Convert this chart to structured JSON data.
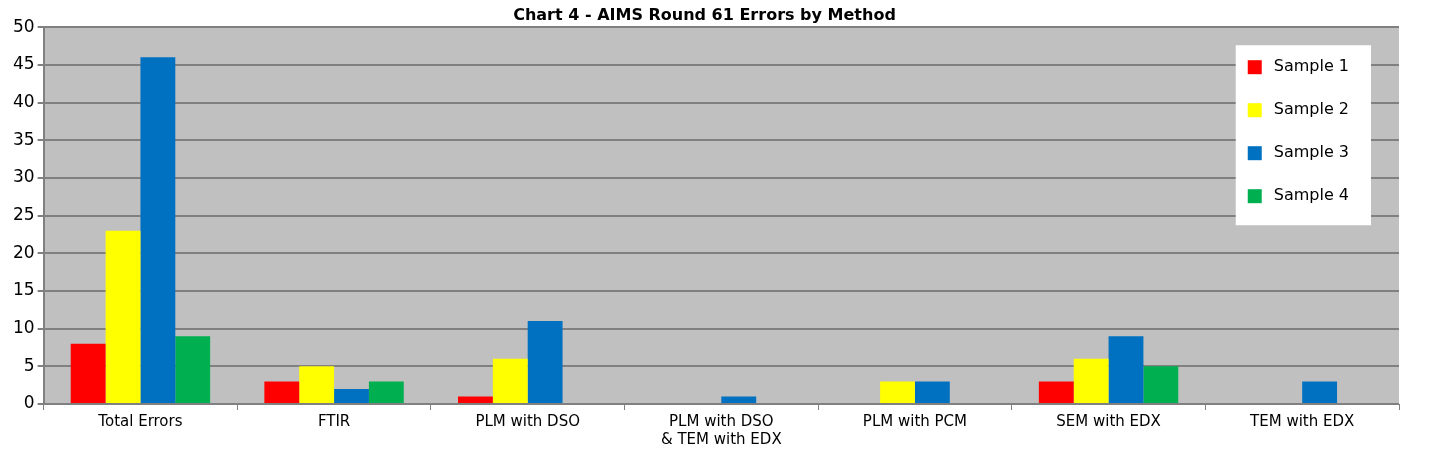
{
  "chart_data": {
    "type": "bar",
    "title": "Chart 4 - AIMS Round 61 Errors by Method",
    "categories": [
      "Total Errors",
      "FTIR",
      "PLM with DSO",
      "PLM with DSO & TEM with EDX",
      "PLM with PCM",
      "SEM with EDX",
      "TEM with EDX"
    ],
    "series": [
      {
        "name": "Sample 1",
        "color": "#ff0000",
        "values": [
          8,
          3,
          1,
          0,
          0,
          3,
          0
        ]
      },
      {
        "name": "Sample 2",
        "color": "#ffff00",
        "values": [
          23,
          5,
          6,
          0,
          3,
          6,
          0
        ]
      },
      {
        "name": "Sample 3",
        "color": "#0070c0",
        "values": [
          46,
          2,
          11,
          1,
          3,
          9,
          3
        ]
      },
      {
        "name": "Sample 4",
        "color": "#00b050",
        "values": [
          9,
          3,
          0,
          0,
          0,
          5,
          0
        ]
      }
    ],
    "ylim": [
      0,
      50
    ],
    "yticks": [
      0,
      5,
      10,
      15,
      20,
      25,
      30,
      35,
      40,
      45,
      50
    ],
    "grid": "y",
    "legend": "top right"
  }
}
